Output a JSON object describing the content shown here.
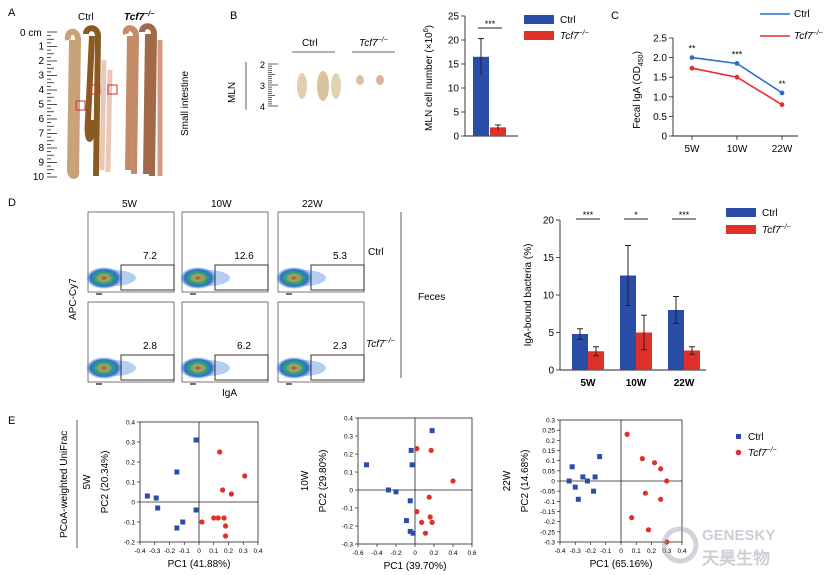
{
  "panels": {
    "A": "A",
    "B": "B",
    "C": "C",
    "D": "D",
    "E": "E"
  },
  "panel_a": {
    "unit": "cm",
    "ruler_ticks": [
      "0",
      "1",
      "2",
      "3",
      "4",
      "5",
      "6",
      "7",
      "8",
      "9",
      "10"
    ],
    "ctrl_label": "Ctrl",
    "ko_label": "Tcf7",
    "ko_sup": "−/−",
    "tissue_label": "Small intestine"
  },
  "panel_b_image": {
    "ctrl_label": "Ctrl",
    "ko_label": "Tcf7",
    "ko_sup": "−/−",
    "organ_label": "MLN",
    "ruler_ticks": [
      "2",
      "3",
      "4"
    ]
  },
  "legend": {
    "ctrl": "Ctrl",
    "ko": "Tcf7",
    "ko_sup": "−/−"
  },
  "colors": {
    "ctrl": "#2a4ea8",
    "ko": "#e0302a",
    "tissue_dark": "#7a5a2a",
    "tissue_light": "#e8d8c8"
  },
  "panel_d_flow": {
    "col_labels": [
      "5W",
      "10W",
      "22W"
    ],
    "row_labels": [
      "Ctrl",
      "Tcf7"
    ],
    "ko_sup": "−/−",
    "ctrl_percent": [
      "7.2",
      "12.6",
      "5.3"
    ],
    "ko_percent": [
      "2.8",
      "6.2",
      "2.3"
    ],
    "y_axis": "APC-Cy7",
    "x_axis": "IgA",
    "sample_label": "Feces"
  },
  "chart_data": [
    {
      "id": "mln-bar",
      "type": "bar",
      "categories": [
        "Ctrl",
        "Tcf7−/−"
      ],
      "values": [
        16.5,
        1.8
      ],
      "errors": [
        3.8,
        0.5
      ],
      "ylabel": "MLN cell number (×10",
      "ylabel_sup": "6",
      "ylabel_end": ")",
      "ylim": [
        0,
        25
      ],
      "yticks": [
        "0",
        "5",
        "10",
        "15",
        "20",
        "25"
      ],
      "significance": "***"
    },
    {
      "id": "fecal-iga",
      "type": "line",
      "categories": [
        "5W",
        "10W",
        "22W"
      ],
      "series": [
        {
          "name": "Ctrl",
          "values": [
            2.0,
            1.85,
            1.1
          ],
          "errors": [
            0.05,
            0.03,
            0.04
          ]
        },
        {
          "name": "Tcf7−/−",
          "values": [
            1.73,
            1.5,
            0.8
          ],
          "errors": [
            0.05,
            0.04,
            0.04
          ]
        }
      ],
      "ylabel": "Fecal IgA (OD",
      "ylabel_sub": "450",
      "ylabel_end": ")",
      "ylim": [
        0,
        2.5
      ],
      "yticks": [
        "0",
        "0.5",
        "1.0",
        "1.5",
        "2.0",
        "2.5"
      ],
      "significance": [
        "**",
        "***",
        "**"
      ]
    },
    {
      "id": "iga-bound",
      "type": "bar",
      "categories": [
        "5W",
        "10W",
        "22W"
      ],
      "series": [
        {
          "name": "Ctrl",
          "values": [
            4.8,
            12.6,
            8.0
          ],
          "errors": [
            0.7,
            4.0,
            1.8
          ]
        },
        {
          "name": "Tcf7−/−",
          "values": [
            2.5,
            5.0,
            2.6
          ],
          "errors": [
            0.6,
            2.3,
            0.5
          ]
        }
      ],
      "ylabel": "IgA-bound bacteria (%)",
      "ylim": [
        0,
        20
      ],
      "yticks": [
        "0",
        "5",
        "10",
        "15",
        "20"
      ],
      "significance": [
        "***",
        "*",
        "***"
      ]
    },
    {
      "id": "pcoa-5w",
      "type": "scatter",
      "row_label": "5W",
      "xlabel": "PC1 (41.88%)",
      "ylabel": "PC2 (20.34%)",
      "xlim": [
        -0.4,
        0.4
      ],
      "ylim": [
        -0.2,
        0.4
      ],
      "xticks": [
        "-0.4",
        "-0.3",
        "-0.2",
        "-0.1",
        "0",
        "0.1",
        "0.2",
        "0.3",
        "0.4"
      ],
      "yticks": [
        "-0.2",
        "-0.1",
        "0",
        "0.1",
        "0.2",
        "0.3",
        "0.4"
      ],
      "series": [
        {
          "name": "Ctrl",
          "points": [
            [
              -0.02,
              0.31
            ],
            [
              -0.15,
              0.15
            ],
            [
              -0.35,
              0.03
            ],
            [
              -0.29,
              0.02
            ],
            [
              -0.28,
              -0.03
            ],
            [
              -0.02,
              -0.04
            ],
            [
              -0.15,
              -0.13
            ],
            [
              -0.11,
              -0.1
            ]
          ]
        },
        {
          "name": "Tcf7−/−",
          "points": [
            [
              0.14,
              0.25
            ],
            [
              0.31,
              0.13
            ],
            [
              0.16,
              0.06
            ],
            [
              0.22,
              0.04
            ],
            [
              0.13,
              -0.08
            ],
            [
              0.17,
              -0.08
            ],
            [
              0.02,
              -0.1
            ],
            [
              0.18,
              -0.12
            ],
            [
              0.18,
              -0.17
            ],
            [
              0.1,
              -0.08
            ]
          ]
        }
      ]
    },
    {
      "id": "pcoa-10w",
      "type": "scatter",
      "row_label": "10W",
      "xlabel": "PC1 (39.70%)",
      "ylabel": "PC2 (29.80%)",
      "xlim": [
        -0.6,
        0.6
      ],
      "ylim": [
        -0.3,
        0.4
      ],
      "xticks": [
        "-0.6",
        "-0.4",
        "-0.2",
        "0",
        "0.2",
        "0.4",
        "0.6"
      ],
      "yticks": [
        "-0.3",
        "-0.2",
        "-0.1",
        "0",
        "0.1",
        "0.2",
        "0.3",
        "0.4"
      ],
      "series": [
        {
          "name": "Ctrl",
          "points": [
            [
              0.18,
              0.33
            ],
            [
              -0.04,
              0.22
            ],
            [
              -0.51,
              0.14
            ],
            [
              -0.03,
              0.14
            ],
            [
              -0.28,
              0.0
            ],
            [
              -0.2,
              -0.01
            ],
            [
              -0.05,
              -0.06
            ],
            [
              -0.02,
              -0.24
            ],
            [
              -0.05,
              -0.23
            ],
            [
              -0.09,
              -0.17
            ]
          ]
        },
        {
          "name": "Tcf7−/−",
          "points": [
            [
              0.02,
              0.23
            ],
            [
              0.17,
              0.22
            ],
            [
              0.4,
              0.05
            ],
            [
              0.15,
              -0.04
            ],
            [
              0.16,
              -0.15
            ],
            [
              0.02,
              -0.12
            ],
            [
              0.07,
              -0.18
            ],
            [
              0.18,
              -0.18
            ],
            [
              0.11,
              -0.24
            ]
          ]
        }
      ]
    },
    {
      "id": "pcoa-22w",
      "type": "scatter",
      "row_label": "22W",
      "xlabel": "PC1 (65.16%)",
      "ylabel": "PC2 (14.68%)",
      "xlim": [
        -0.4,
        0.4
      ],
      "ylim": [
        -0.3,
        0.3
      ],
      "xticks": [
        "-0.4",
        "-0.3",
        "-0.2",
        "-0.1",
        "0",
        "0.1",
        "0.2",
        "0.3",
        "0.4"
      ],
      "yticks": [
        "-0.3",
        "-0.25",
        "-0.2",
        "-0.15",
        "-0.1",
        "-0.05",
        "0",
        "0.05",
        "0.1",
        "0.15",
        "0.2",
        "0.25",
        "0.3"
      ],
      "series": [
        {
          "name": "Ctrl",
          "points": [
            [
              -0.14,
              0.12
            ],
            [
              -0.32,
              0.07
            ],
            [
              -0.25,
              0.02
            ],
            [
              -0.17,
              0.02
            ],
            [
              -0.22,
              0.0
            ],
            [
              -0.34,
              0.0
            ],
            [
              -0.3,
              -0.03
            ],
            [
              -0.18,
              -0.05
            ],
            [
              -0.28,
              -0.09
            ]
          ]
        },
        {
          "name": "Tcf7−/−",
          "points": [
            [
              0.04,
              0.23
            ],
            [
              0.14,
              0.11
            ],
            [
              0.22,
              0.09
            ],
            [
              0.26,
              0.06
            ],
            [
              0.3,
              0.0
            ],
            [
              0.16,
              -0.06
            ],
            [
              0.26,
              -0.09
            ],
            [
              0.07,
              -0.18
            ],
            [
              0.18,
              -0.24
            ],
            [
              0.3,
              -0.3
            ]
          ]
        }
      ]
    }
  ],
  "panel_e": {
    "method_label": "PCoA-weighted UniFrac"
  },
  "watermark": {
    "en": "GENESKY",
    "cn": "天昊生物"
  }
}
